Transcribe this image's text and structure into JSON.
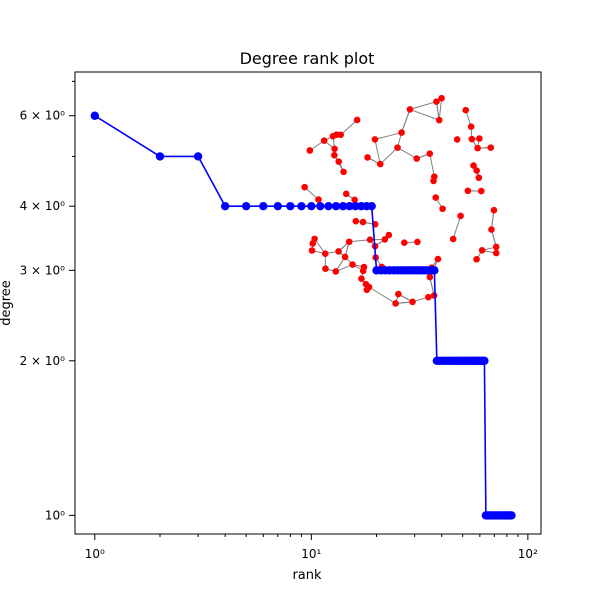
{
  "chart_data": {
    "type": "line",
    "title": "Degree rank plot",
    "xlabel": "rank",
    "ylabel": "degree",
    "x_scale": "log",
    "y_scale": "log",
    "xlim": [
      0.81,
      115
    ],
    "ylim": [
      0.92,
      7.3
    ],
    "grid": false,
    "x_ticks": [
      {
        "value": 1,
        "label": "10⁰"
      },
      {
        "value": 10,
        "label": "10¹"
      },
      {
        "value": 100,
        "label": "10²"
      }
    ],
    "y_ticks": [
      {
        "value": 1,
        "label": "10⁰"
      },
      {
        "value": 2,
        "label": "2 × 10⁰"
      },
      {
        "value": 3,
        "label": "3 × 10⁰"
      },
      {
        "value": 4,
        "label": "4 × 10⁰"
      },
      {
        "value": 6,
        "label": "6 × 10⁰"
      }
    ],
    "series": [
      {
        "color": "#0000ff",
        "marker": "circle",
        "x": [
          1,
          2,
          3,
          4,
          5,
          6,
          7,
          8,
          9,
          10,
          11,
          12,
          13,
          14,
          15,
          16,
          17,
          18,
          19,
          20,
          21,
          22,
          23,
          24,
          25,
          26,
          27,
          28,
          29,
          30,
          31,
          32,
          33,
          34,
          35,
          36,
          37,
          38,
          39,
          40,
          41,
          42,
          43,
          44,
          45,
          46,
          47,
          48,
          49,
          50,
          51,
          52,
          53,
          54,
          55,
          56,
          57,
          58,
          59,
          60,
          61,
          62,
          63,
          64,
          65,
          66,
          67,
          68,
          69,
          70,
          71,
          72,
          73,
          74,
          75,
          76,
          77,
          78,
          79,
          80,
          81,
          82,
          83,
          84
        ],
        "y": [
          6,
          5,
          5,
          4,
          4,
          4,
          4,
          4,
          4,
          4,
          4,
          4,
          4,
          4,
          4,
          4,
          4,
          4,
          4,
          3,
          3,
          3,
          3,
          3,
          3,
          3,
          3,
          3,
          3,
          3,
          3,
          3,
          3,
          3,
          3,
          3,
          3,
          2,
          2,
          2,
          2,
          2,
          2,
          2,
          2,
          2,
          2,
          2,
          2,
          2,
          2,
          2,
          2,
          2,
          2,
          2,
          2,
          2,
          2,
          2,
          2,
          2,
          2,
          1,
          1,
          1,
          1,
          1,
          1,
          1,
          1,
          1,
          1,
          1,
          1,
          1,
          1,
          1,
          1,
          1,
          1,
          1,
          1,
          1
        ]
      }
    ],
    "inset_network": {
      "node_color": "#ff0000",
      "edge_color": "#808080",
      "node_count": 84
    }
  }
}
